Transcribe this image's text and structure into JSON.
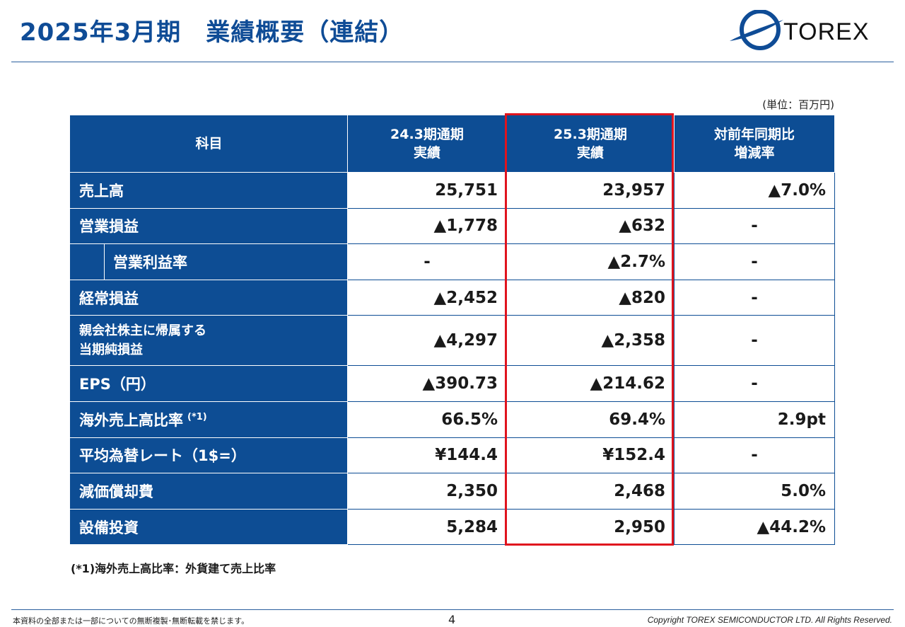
{
  "header": {
    "title": "2025年3月期　業績概要（連結）",
    "logo_text": "TOREX"
  },
  "unit_label": "(単位：百万円)",
  "table": {
    "headers": [
      "科目",
      "24.3期通期\n実績",
      "25.3期通期\n実績",
      "対前年同期比\n増減率"
    ],
    "rows": [
      {
        "label": "売上高",
        "prev": "25,751",
        "curr": "23,957",
        "change": "▲7.0%"
      },
      {
        "label": "営業損益",
        "prev": "▲1,778",
        "curr": "▲632",
        "change": "-"
      },
      {
        "label": "営業利益率",
        "prev": "-",
        "curr": "▲2.7%",
        "change": "-"
      },
      {
        "label": "経常損益",
        "prev": "▲2,452",
        "curr": "▲820",
        "change": "-"
      },
      {
        "label": "親会社株主に帰属する\n当期純損益",
        "prev": "▲4,297",
        "curr": "▲2,358",
        "change": "-"
      },
      {
        "label": "EPS（円）",
        "prev": "▲390.73",
        "curr": "▲214.62",
        "change": "-"
      },
      {
        "label": "海外売上高比率",
        "note": "(*1)",
        "prev": "66.5%",
        "curr": "69.4%",
        "change": "2.9pt"
      },
      {
        "label": "平均為替レート（1$=）",
        "prev": "¥144.4",
        "curr": "¥152.4",
        "change": "-"
      },
      {
        "label": "減価償却費",
        "prev": "2,350",
        "curr": "2,468",
        "change": "5.0%"
      },
      {
        "label": "設備投資",
        "prev": "5,284",
        "curr": "2,950",
        "change": "▲44.2%"
      }
    ]
  },
  "footnote": "(*1)海外売上高比率：外貨建て売上比率",
  "footer": {
    "left": "本資料の全部または一部についての無断複製･無断転載を禁じます。",
    "page": "4",
    "right": "Copyright TOREX SEMICONDUCTOR LTD.  All Rights Reserved."
  },
  "colors": {
    "header_blue": "#0d4d94",
    "title_blue": "#0f4c96",
    "highlight_red": "#e0141e"
  },
  "icons": {
    "logo": "torex-ellipse-logo-icon"
  }
}
